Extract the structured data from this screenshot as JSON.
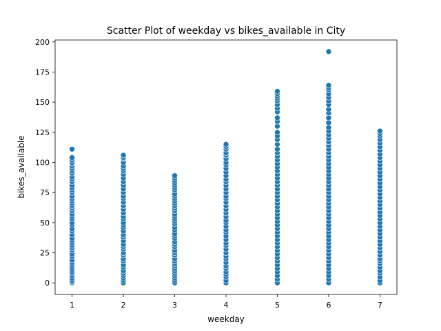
{
  "chart_data": {
    "type": "scatter",
    "title": "Scatter Plot of weekday vs bikes_available in City",
    "xlabel": "weekday",
    "ylabel": "bikes_available",
    "x_ticks": [
      1,
      2,
      3,
      4,
      5,
      6,
      7
    ],
    "y_ticks": [
      0,
      25,
      50,
      75,
      100,
      125,
      150,
      175,
      200
    ],
    "xlim": [
      0.67,
      7.33
    ],
    "ylim": [
      -9.6,
      201.6
    ],
    "grid": false,
    "color": "#1f77b4",
    "points": [
      {
        "x": 1,
        "y": [
          0,
          1,
          2,
          4,
          6,
          8,
          9,
          11,
          13,
          15,
          17,
          19,
          22,
          24,
          27,
          29,
          31,
          33,
          35,
          37,
          40,
          43,
          45,
          48,
          50,
          53,
          55,
          57,
          60,
          62,
          64,
          66,
          68,
          70,
          72,
          75,
          77,
          79,
          81,
          84,
          86,
          88,
          91,
          93,
          95,
          97,
          99,
          100,
          102,
          104,
          111
        ]
      },
      {
        "x": 2,
        "y": [
          0,
          2,
          4,
          6,
          8,
          10,
          13,
          15,
          18,
          20,
          23,
          25,
          28,
          30,
          32,
          35,
          38,
          40,
          43,
          46,
          48,
          50,
          53,
          55,
          58,
          61,
          64,
          67,
          70,
          72,
          75,
          78,
          81,
          84,
          87,
          90,
          93,
          95,
          97,
          100,
          103,
          104,
          106
        ]
      },
      {
        "x": 3,
        "y": [
          0,
          2,
          4,
          6,
          8,
          10,
          12,
          14,
          16,
          18,
          20,
          23,
          25,
          27,
          30,
          32,
          34,
          37,
          39,
          41,
          44,
          46,
          49,
          51,
          53,
          55,
          57,
          60,
          62,
          64,
          66,
          68,
          70,
          72,
          74,
          77,
          79,
          81,
          83,
          85,
          87,
          89
        ]
      },
      {
        "x": 4,
        "y": [
          0,
          2,
          5,
          7,
          9,
          12,
          14,
          17,
          20,
          22,
          25,
          28,
          31,
          33,
          36,
          39,
          42,
          44,
          47,
          50,
          52,
          55,
          58,
          61,
          64,
          67,
          70,
          72,
          75,
          78,
          81,
          84,
          86,
          89,
          92,
          95,
          98,
          100,
          103,
          106,
          108,
          111,
          113,
          115
        ]
      },
      {
        "x": 5,
        "y": [
          0,
          3,
          6,
          9,
          12,
          15,
          18,
          21,
          24,
          27,
          30,
          33,
          36,
          39,
          42,
          45,
          48,
          51,
          54,
          57,
          60,
          63,
          66,
          69,
          72,
          75,
          78,
          81,
          84,
          87,
          90,
          93,
          96,
          99,
          102,
          105,
          108,
          111,
          115,
          119,
          122,
          125,
          130,
          134,
          137,
          142,
          145,
          148,
          151,
          153,
          155,
          157,
          159
        ]
      },
      {
        "x": 6,
        "y": [
          0,
          3,
          6,
          9,
          12,
          15,
          18,
          21,
          24,
          27,
          30,
          33,
          36,
          39,
          42,
          45,
          48,
          51,
          54,
          57,
          60,
          63,
          66,
          69,
          72,
          75,
          78,
          81,
          84,
          87,
          90,
          93,
          96,
          99,
          102,
          105,
          108,
          111,
          114,
          117,
          120,
          123,
          126,
          129,
          133,
          137,
          141,
          144,
          148,
          151,
          154,
          157,
          160,
          162,
          164,
          192
        ]
      },
      {
        "x": 7,
        "y": [
          0,
          2,
          5,
          8,
          10,
          13,
          16,
          18,
          20,
          23,
          26,
          29,
          32,
          35,
          38,
          41,
          44,
          47,
          50,
          53,
          56,
          59,
          62,
          65,
          68,
          71,
          74,
          77,
          80,
          83,
          86,
          89,
          92,
          95,
          98,
          101,
          104,
          107,
          110,
          113,
          116,
          119,
          122,
          124,
          126
        ]
      }
    ]
  }
}
